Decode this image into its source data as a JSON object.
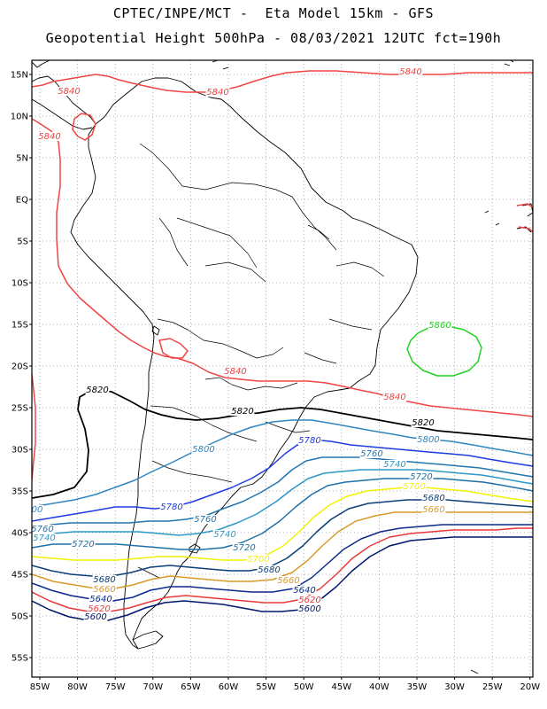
{
  "header": {
    "line1": "CPTEC/INPE/MCT -  Eta Model 15km - GFS",
    "line2": "Geopotential Height 500hPa - 08/03/2021 12UTC fct=190h"
  },
  "axes": {
    "lat_labels": [
      "15N",
      "10N",
      "5N",
      "EQ",
      "5S",
      "10S",
      "15S",
      "20S",
      "25S",
      "30S",
      "35S",
      "40S",
      "45S",
      "50S",
      "55S"
    ],
    "lon_labels": [
      "85W",
      "80W",
      "75W",
      "70W",
      "65W",
      "60W",
      "55W",
      "50W",
      "45W",
      "40W",
      "35W",
      "30W",
      "25W",
      "20W"
    ]
  },
  "colors": {
    "c5600": "#00166b",
    "c5620": "#e8383a",
    "c5640": "#0a2a8c",
    "c5660": "#d89a2a",
    "c5680": "#0a3f7a",
    "c5700": "#f2f200",
    "c5720": "#1f6fa8",
    "c5740": "#2b98c8",
    "c5760": "#2176b0",
    "c5780": "#1f3be0",
    "c5800": "#2f86c0",
    "c5820": "#000000",
    "c5840": "#f04545",
    "c5860": "#22d022",
    "coast": "#000000",
    "grid": "#9a9a9a"
  },
  "contour_labels": [
    {
      "text": "5840",
      "color": "c5840"
    },
    {
      "text": "5840",
      "color": "c5840"
    },
    {
      "text": "5840",
      "color": "c5840"
    },
    {
      "text": "5840",
      "color": "c5840"
    },
    {
      "text": "5840",
      "color": "c5840"
    },
    {
      "text": "5840",
      "color": "c5840"
    },
    {
      "text": "5860",
      "color": "c5860"
    },
    {
      "text": "5820",
      "color": "c5820"
    },
    {
      "text": "5820",
      "color": "c5820"
    },
    {
      "text": "5820",
      "color": "c5820"
    },
    {
      "text": "5800",
      "color": "c5800"
    },
    {
      "text": "5800",
      "color": "c5800"
    },
    {
      "text": "5780",
      "color": "c5780"
    },
    {
      "text": "5780",
      "color": "c5780"
    },
    {
      "text": "5760",
      "color": "c5760"
    },
    {
      "text": "5760",
      "color": "c5760"
    },
    {
      "text": "5760",
      "color": "c5760"
    },
    {
      "text": "5740",
      "color": "c5740"
    },
    {
      "text": "5740",
      "color": "c5740"
    },
    {
      "text": "5740",
      "color": "c5740"
    },
    {
      "text": "5720",
      "color": "c5720"
    },
    {
      "text": "5720",
      "color": "c5720"
    },
    {
      "text": "5720",
      "color": "c5720"
    },
    {
      "text": "5700",
      "color": "c5700"
    },
    {
      "text": "5700",
      "color": "c5700"
    },
    {
      "text": "5680",
      "color": "c5680"
    },
    {
      "text": "5680",
      "color": "c5680"
    },
    {
      "text": "5680",
      "color": "c5680"
    },
    {
      "text": "5660",
      "color": "c5660"
    },
    {
      "text": "5660",
      "color": "c5660"
    },
    {
      "text": "5660",
      "color": "c5660"
    },
    {
      "text": "5640",
      "color": "c5640"
    },
    {
      "text": "5640",
      "color": "c5640"
    },
    {
      "text": "5620",
      "color": "c5620"
    },
    {
      "text": "5620",
      "color": "c5620"
    },
    {
      "text": "5600",
      "color": "c5600"
    },
    {
      "text": "5600",
      "color": "c5600"
    },
    {
      "text": "00",
      "color": "c5800"
    }
  ]
}
